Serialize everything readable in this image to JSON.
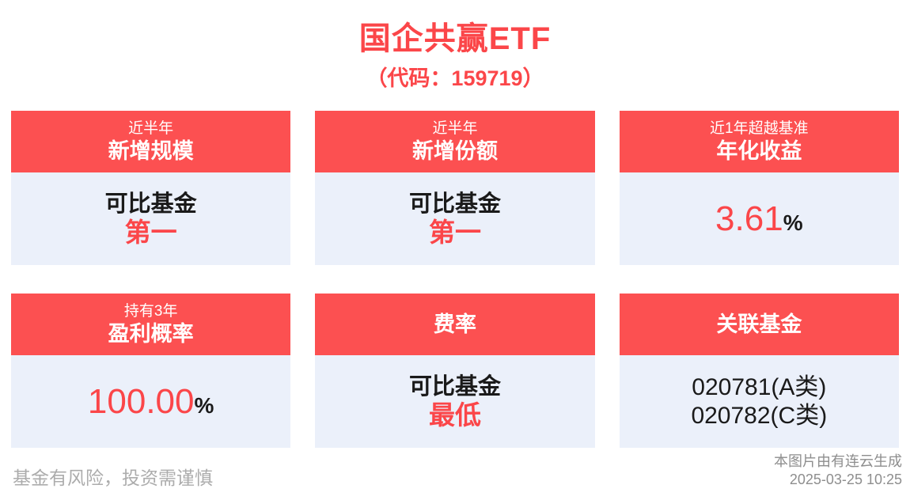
{
  "header": {
    "title": "国企共赢ETF",
    "subtitle": "（代码：159719）"
  },
  "cards": [
    {
      "header_sub": "近半年",
      "header_main": "新增规模",
      "line1": "可比基金",
      "line2": "第一"
    },
    {
      "header_sub": "近半年",
      "header_main": "新增份额",
      "line1": "可比基金",
      "line2": "第一"
    },
    {
      "header_sub": "近1年超越基准",
      "header_main": "年化收益",
      "value": "3.61",
      "unit": "%"
    },
    {
      "header_sub": "持有3年",
      "header_main": "盈利概率",
      "value": "100.00",
      "unit": "%"
    },
    {
      "header_main": "费率",
      "line1": "可比基金",
      "line2": "最低"
    },
    {
      "header_main": "关联基金",
      "code1": "020781(A类)",
      "code2": "020782(C类)"
    }
  ],
  "footer": {
    "disclaimer": "基金有风险，投资需谨慎",
    "credit": "本图片由有连云生成",
    "timestamp": "2025-03-25 10:25"
  },
  "colors": {
    "accent_red": "#FB4649",
    "header_red": "#FC5051",
    "card_body_bg": "#EBF0FA",
    "text_black": "#1A1A1A",
    "disclaimer_gray": "#ACACAC",
    "credit_gray": "#8E8E8E"
  }
}
